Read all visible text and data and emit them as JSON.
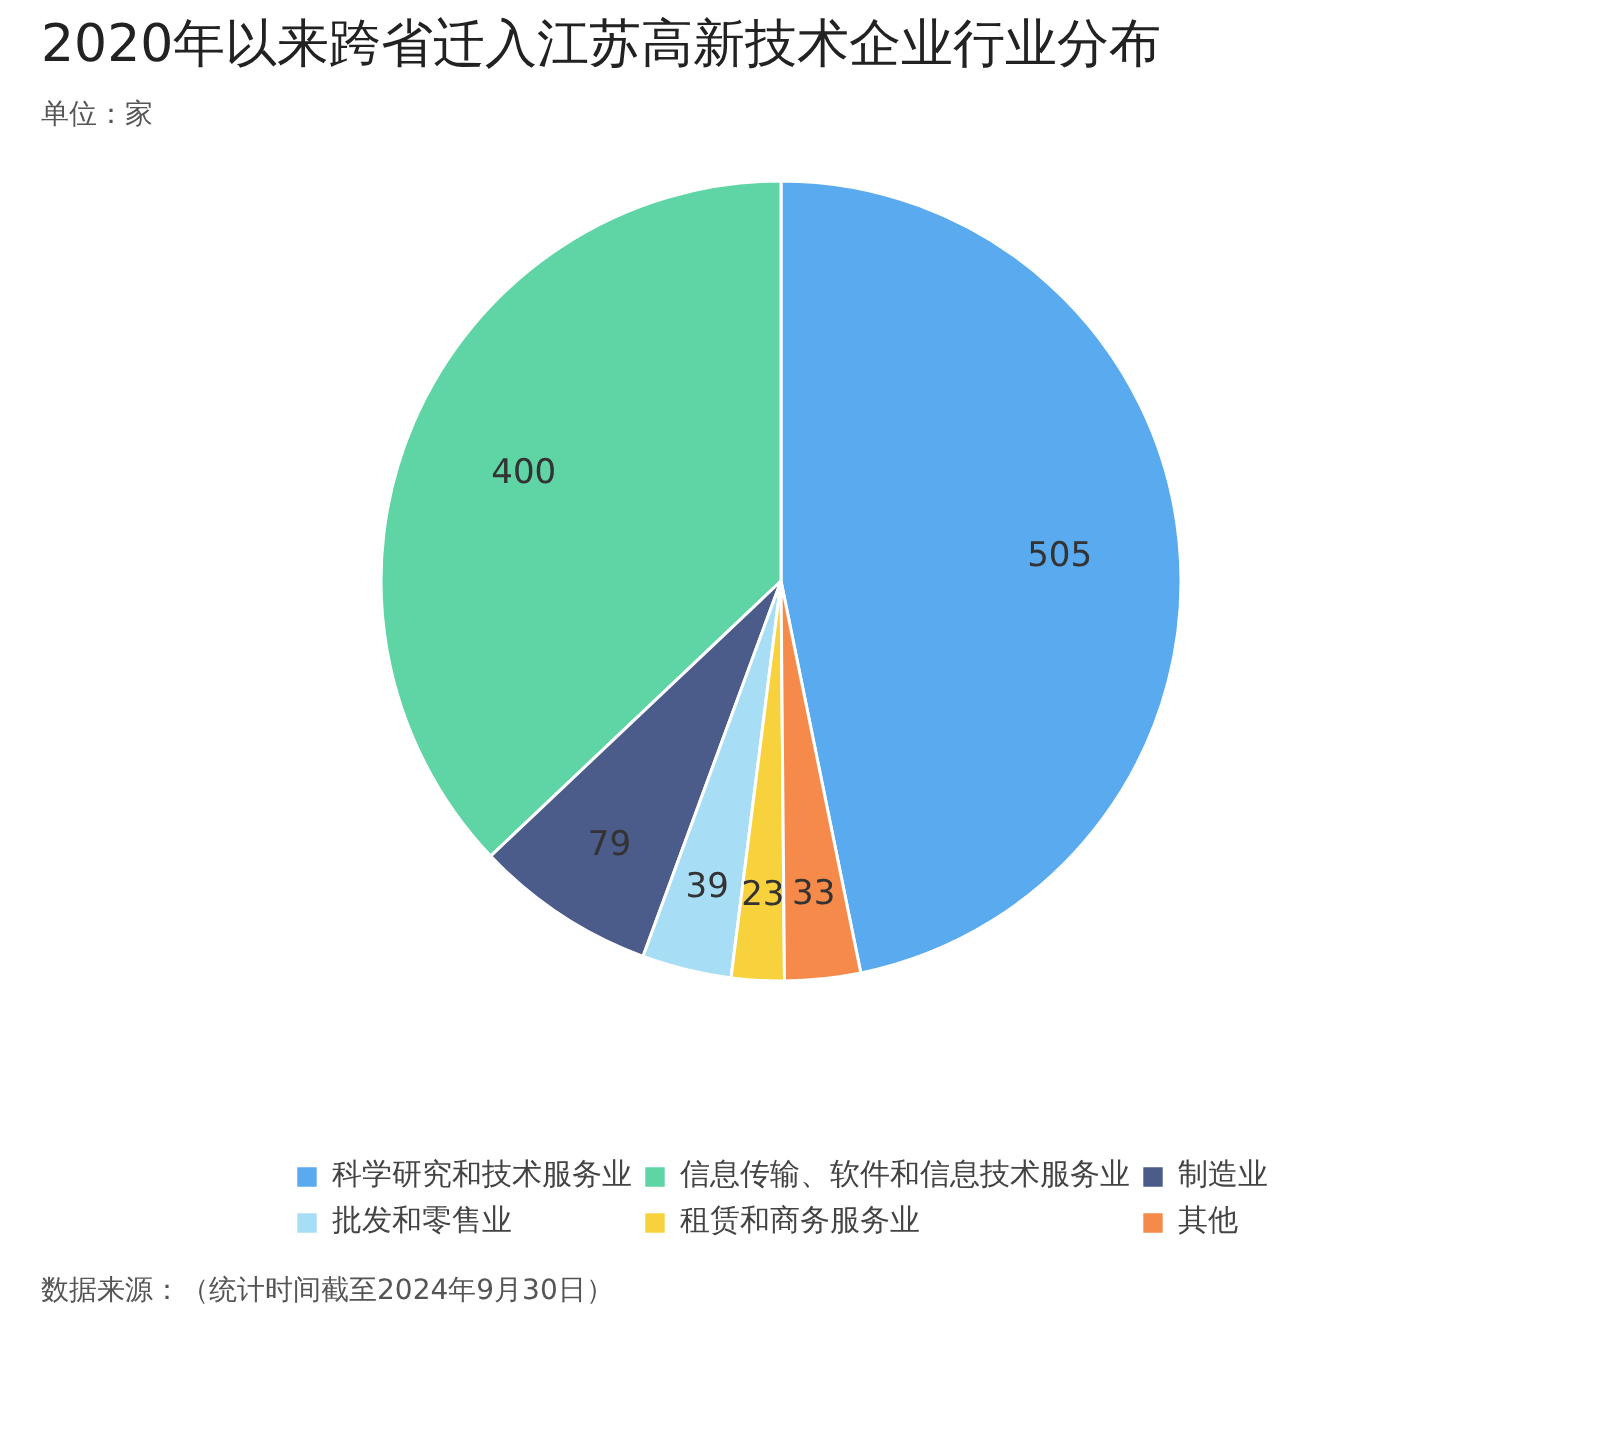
{
  "chart_data": {
    "type": "pie",
    "title": "2020年以来跨省迁入江苏高新技术企业行业分布",
    "subtitle": "单位：家",
    "categories": [
      "科学研究和技术服务业",
      "信息传输、软件和信息技术服务业",
      "制造业",
      "批发和零售业",
      "租赁和商务服务业",
      "其他"
    ],
    "values": [
      505,
      400,
      79,
      39,
      23,
      33
    ],
    "colors": [
      "#5aaaf0",
      "#5fd5a5",
      "#4b5c8a",
      "#a8def5",
      "#f8d23c",
      "#f68a4a"
    ],
    "data_labels": true,
    "legend": "bottom",
    "annotations": [
      "数据来源：（统计时间截至2024年9月30日）"
    ]
  }
}
